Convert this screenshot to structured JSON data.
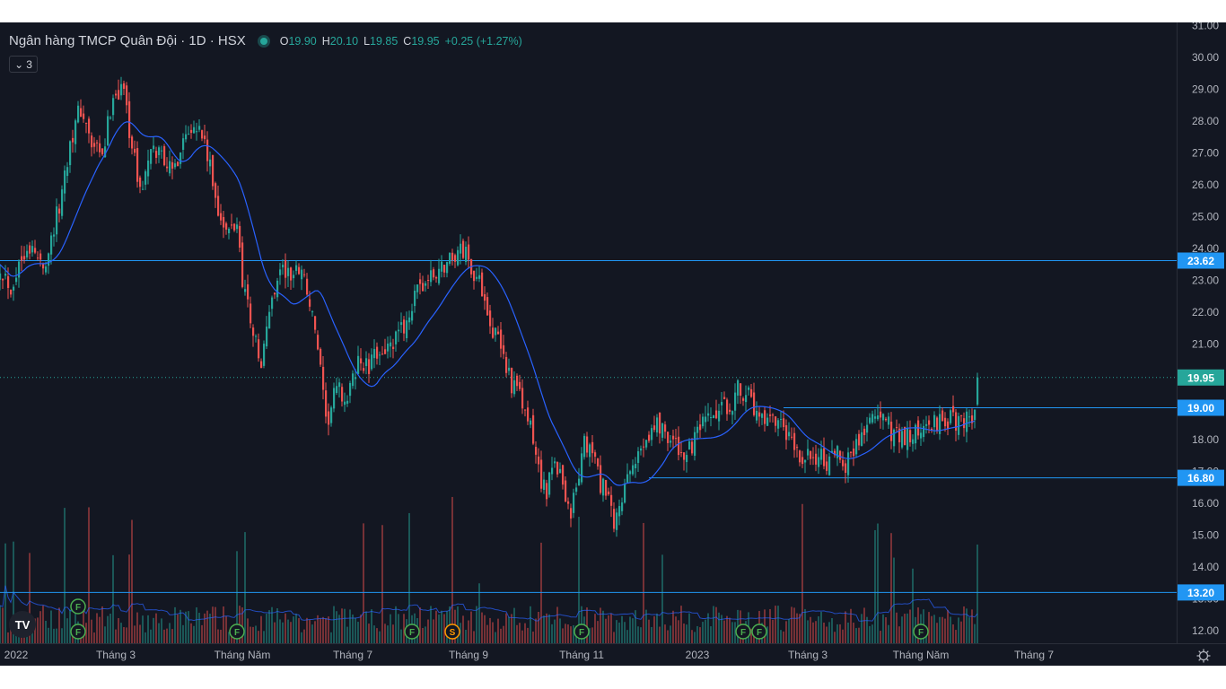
{
  "header": {
    "symbol_title": "Ngân hàng TMCP Quân Đội · 1D · HSX",
    "open_label": "O",
    "open": "19.90",
    "high_label": "H",
    "high": "20.10",
    "low_label": "L",
    "low": "19.85",
    "close_label": "C",
    "close": "19.95",
    "change": "+0.25 (+1.27%)",
    "indicators_count": "3",
    "status_color": "#26a69a"
  },
  "icons": {
    "collapse": "chevron-down-icon",
    "logo": "tradingview-logo-icon",
    "settings": "gear-icon"
  },
  "logo_text": "TV",
  "colors": {
    "up": "#26a69a",
    "down": "#ef5350",
    "ma": "#2962ff",
    "hline": "#2196f3",
    "background": "#131722",
    "text": "#b2b5be"
  },
  "chart_data": {
    "type": "candlestick",
    "y_ticks": [
      "12.00",
      "13.00",
      "14.00",
      "15.00",
      "16.00",
      "17.00",
      "18.00",
      "19.00",
      "20.00",
      "21.00",
      "22.00",
      "23.00",
      "24.00",
      "25.00",
      "26.00",
      "27.00",
      "28.00",
      "29.00",
      "30.00",
      "31.00"
    ],
    "x_ticks": [
      {
        "label": "2022",
        "bar": 6
      },
      {
        "label": "Tháng 3",
        "bar": 43
      },
      {
        "label": "Tháng Năm",
        "bar": 90
      },
      {
        "label": "Tháng 7",
        "bar": 131
      },
      {
        "label": "Tháng 9",
        "bar": 174
      },
      {
        "label": "Tháng 11",
        "bar": 216
      },
      {
        "label": "2023",
        "bar": 259
      },
      {
        "label": "Tháng 3",
        "bar": 300
      },
      {
        "label": "Tháng Năm",
        "bar": 342
      },
      {
        "label": "Tháng 7",
        "bar": 384
      }
    ],
    "ylim": [
      12,
      31
    ],
    "bar_count": 400,
    "last_price": "19.95",
    "horizontal_lines": [
      {
        "value": 23.62,
        "label": "23.62",
        "from_bar": -10
      },
      {
        "value": 19.0,
        "label": "19.00",
        "from_bar": 291
      },
      {
        "value": 16.8,
        "label": "16.80",
        "from_bar": 241
      },
      {
        "value": 13.2,
        "label": "13.20",
        "from_bar": -10
      }
    ],
    "events": [
      {
        "label": "F",
        "bar": 29,
        "row": 0
      },
      {
        "label": "F",
        "bar": 29,
        "row": 1
      },
      {
        "label": "F",
        "bar": 88,
        "row": 1
      },
      {
        "label": "F",
        "bar": 153,
        "row": 1
      },
      {
        "label": "S",
        "bar": 168,
        "row": 1
      },
      {
        "label": "F",
        "bar": 216,
        "row": 1
      },
      {
        "label": "F",
        "bar": 276,
        "row": 1
      },
      {
        "label": "F",
        "bar": 282,
        "row": 1
      },
      {
        "label": "F",
        "bar": 342,
        "row": 1
      }
    ],
    "close_anchors": [
      [
        0,
        23.5
      ],
      [
        4,
        22.8
      ],
      [
        10,
        24.2
      ],
      [
        16,
        23.4
      ],
      [
        22,
        25.3
      ],
      [
        26,
        27.4
      ],
      [
        30,
        28.4
      ],
      [
        34,
        27.2
      ],
      [
        38,
        26.8
      ],
      [
        42,
        28.9
      ],
      [
        46,
        29.0
      ],
      [
        49,
        27.2
      ],
      [
        52,
        25.8
      ],
      [
        56,
        26.9
      ],
      [
        60,
        27.1
      ],
      [
        64,
        26.3
      ],
      [
        68,
        27.5
      ],
      [
        72,
        28.1
      ],
      [
        76,
        27.3
      ],
      [
        80,
        25.6
      ],
      [
        84,
        24.4
      ],
      [
        88,
        24.8
      ],
      [
        90,
        23.1
      ],
      [
        94,
        21.4
      ],
      [
        97,
        20.2
      ],
      [
        100,
        22.1
      ],
      [
        104,
        23.4
      ],
      [
        108,
        23.1
      ],
      [
        112,
        23.5
      ],
      [
        116,
        21.8
      ],
      [
        118,
        20.9
      ],
      [
        121,
        18.4
      ],
      [
        125,
        19.6
      ],
      [
        129,
        19.2
      ],
      [
        133,
        20.5
      ],
      [
        137,
        20.2
      ],
      [
        141,
        20.9
      ],
      [
        145,
        20.8
      ],
      [
        149,
        21.4
      ],
      [
        153,
        22.2
      ],
      [
        157,
        22.9
      ],
      [
        161,
        23.1
      ],
      [
        165,
        23.5
      ],
      [
        170,
        23.9
      ],
      [
        173,
        23.9
      ],
      [
        176,
        23.2
      ],
      [
        180,
        22.6
      ],
      [
        183,
        21.4
      ],
      [
        186,
        20.9
      ],
      [
        190,
        19.8
      ],
      [
        194,
        19.1
      ],
      [
        197,
        18.3
      ],
      [
        200,
        17.1
      ],
      [
        203,
        16.2
      ],
      [
        206,
        17.5
      ],
      [
        209,
        16.6
      ],
      [
        212,
        15.7
      ],
      [
        214,
        16.5
      ],
      [
        217,
        17.8
      ],
      [
        220,
        17.6
      ],
      [
        223,
        16.6
      ],
      [
        226,
        16.1
      ],
      [
        228,
        15.1
      ],
      [
        230,
        16.0
      ],
      [
        233,
        16.6
      ],
      [
        236,
        17.3
      ],
      [
        240,
        18.2
      ],
      [
        244,
        18.5
      ],
      [
        248,
        18.2
      ],
      [
        252,
        17.6
      ],
      [
        256,
        17.6
      ],
      [
        260,
        18.3
      ],
      [
        264,
        18.6
      ],
      [
        268,
        18.9
      ],
      [
        272,
        19.2
      ],
      [
        275,
        19.7
      ],
      [
        278,
        19.3
      ],
      [
        281,
        18.7
      ],
      [
        284,
        18.4
      ],
      [
        287,
        18.5
      ],
      [
        290,
        18.3
      ],
      [
        293,
        18.0
      ],
      [
        296,
        17.5
      ],
      [
        299,
        17.3
      ],
      [
        302,
        17.6
      ],
      [
        305,
        17.4
      ],
      [
        308,
        17.2
      ],
      [
        311,
        17.5
      ],
      [
        314,
        17.3
      ],
      [
        317,
        17.7
      ],
      [
        320,
        18.2
      ],
      [
        323,
        18.6
      ],
      [
        326,
        18.8
      ],
      [
        329,
        18.5
      ],
      [
        332,
        18.2
      ],
      [
        335,
        18.2
      ],
      [
        338,
        18.0
      ],
      [
        341,
        18.3
      ],
      [
        344,
        18.3
      ],
      [
        347,
        18.5
      ],
      [
        350,
        18.7
      ],
      [
        353,
        18.6
      ],
      [
        356,
        18.5
      ],
      [
        359,
        18.8
      ],
      [
        362,
        18.7
      ],
      [
        363,
        19.9
      ]
    ]
  }
}
